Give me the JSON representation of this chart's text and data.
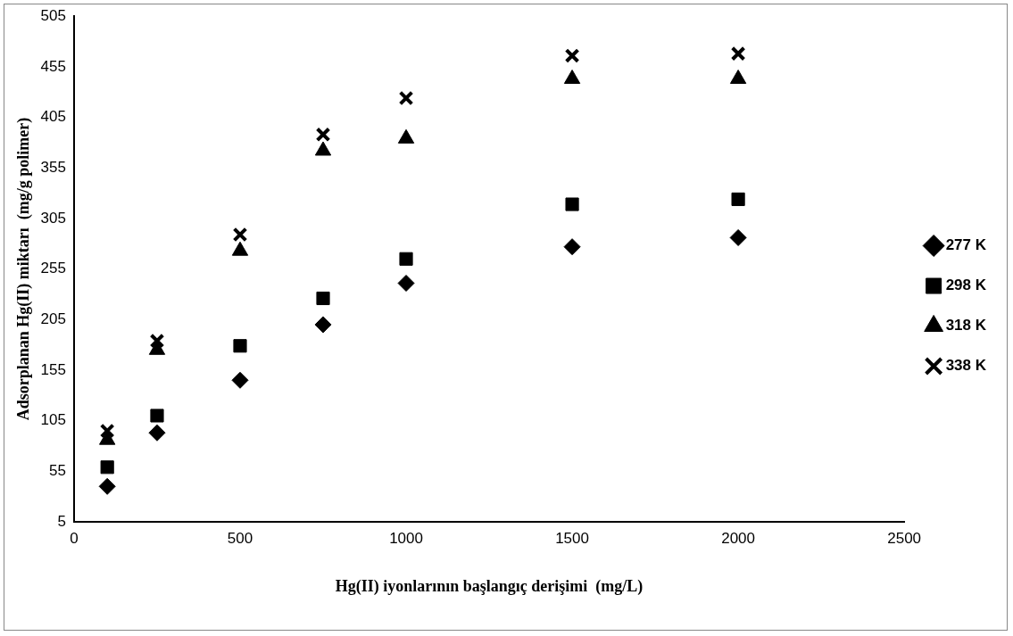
{
  "chart_data": {
    "type": "scatter",
    "xlabel": "Hg(II) iyonlarının başlangıç derişimi  (mg/L)",
    "ylabel": "Adsorplanan Hg(II) miktarı  (mg/g polimer)",
    "x": [
      100,
      250,
      500,
      750,
      1000,
      1500,
      2000
    ],
    "series": [
      {
        "name": "277 K",
        "color": "#000000",
        "marker": "diamond",
        "values": [
          40,
          93,
          145,
          200,
          241,
          277,
          286
        ]
      },
      {
        "name": "298 K",
        "color": "#000000",
        "marker": "square",
        "values": [
          59,
          110,
          179,
          226,
          265,
          319,
          324
        ]
      },
      {
        "name": "318 K",
        "color": "#000000",
        "marker": "triangle",
        "values": [
          86,
          175,
          273,
          372,
          384,
          443,
          443
        ]
      },
      {
        "name": "338 K",
        "color": "#000000",
        "marker": "cross",
        "values": [
          95,
          184,
          289,
          388,
          424,
          466,
          468
        ]
      }
    ],
    "xlim": [
      0,
      2500
    ],
    "xticks": [
      0,
      500,
      1000,
      1500,
      2000,
      2500
    ],
    "ylim": [
      5,
      505
    ],
    "yticks": [
      5,
      55,
      105,
      155,
      205,
      255,
      305,
      355,
      405,
      455,
      505
    ],
    "grid": false,
    "legend": "right"
  }
}
